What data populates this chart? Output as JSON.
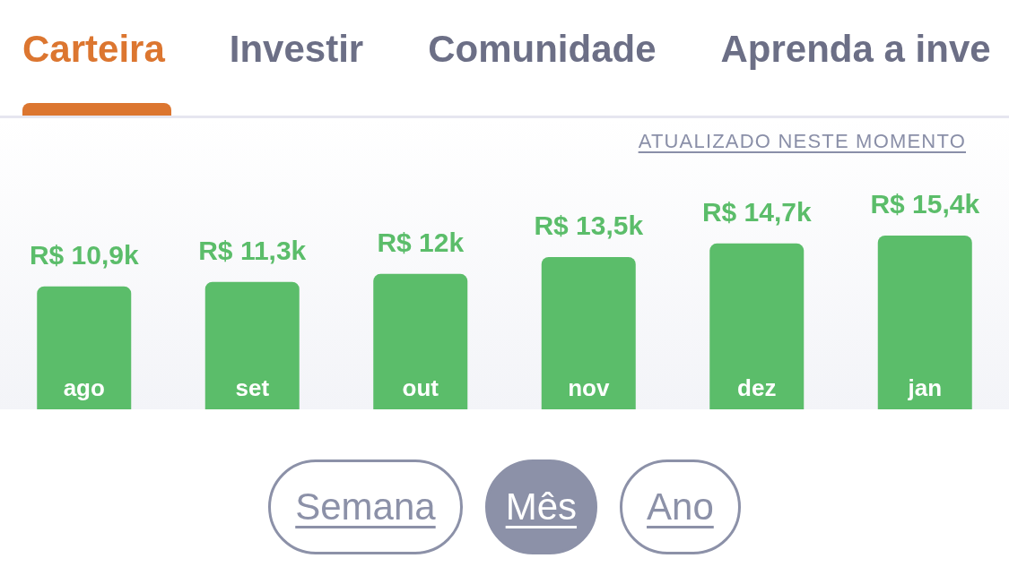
{
  "chart_data": {
    "type": "bar",
    "categories": [
      "ago",
      "set",
      "out",
      "nov",
      "dez",
      "jan"
    ],
    "values": [
      10900,
      11300,
      12000,
      13500,
      14700,
      15400
    ],
    "color": "#5bbd6a",
    "value_labels": [
      "R$ 10,9k",
      "R$ 11,3k",
      "R$ 12k",
      "R$ 13,5k",
      "R$ 14,7k",
      "R$ 15,4k"
    ],
    "tick_labels": "x",
    "annotations": [
      "Carteira",
      "Investir",
      "Comunidade",
      "Aprenda a inve",
      "ATUALIZADO NESTE MOMENTO",
      "Semana",
      "Mês",
      "Ano"
    ]
  }
}
